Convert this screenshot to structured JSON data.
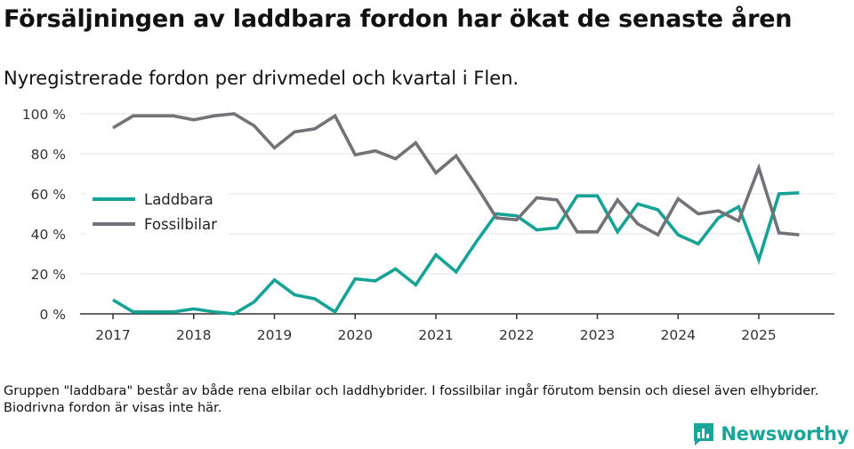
{
  "header": {
    "title": "Försäljningen av laddbara fordon har ökat de senaste åren",
    "subtitle": "Nyregistrerade fordon per drivmedel och kvartal i Flen."
  },
  "footnote": "Gruppen \"laddbara\" består av både rena elbilar och laddhybrider. I fossilbilar ingår förutom bensin och diesel även elhybrider. Biodrivna fordon är visas inte här.",
  "brand": {
    "name": "Newsworthy",
    "icon": "newsworthy-logo-icon"
  },
  "colors": {
    "laddbara": "#16a396",
    "fossilbilar": "#737278",
    "grid": "#e3e3e3",
    "axis": "#333333"
  },
  "chart_data": {
    "type": "line",
    "title": "Försäljningen av laddbara fordon har ökat de senaste åren",
    "xlabel": "",
    "ylabel": "",
    "ylim": [
      0,
      100
    ],
    "xlim": [
      2017,
      2025.9
    ],
    "yticks": [
      0,
      20,
      40,
      60,
      80,
      100
    ],
    "ytick_labels": [
      "0 %",
      "20 %",
      "40 %",
      "60 %",
      "80 %",
      "100 %"
    ],
    "xticks": [
      2017,
      2018,
      2019,
      2020,
      2021,
      2022,
      2023,
      2024,
      2025
    ],
    "xtick_labels": [
      "2017",
      "2018",
      "2019",
      "2020",
      "2021",
      "2022",
      "2023",
      "2024",
      "2025"
    ],
    "grid": true,
    "legend_position": "left-middle",
    "x": [
      2017.0,
      2017.25,
      2017.5,
      2017.75,
      2018.0,
      2018.25,
      2018.5,
      2018.75,
      2019.0,
      2019.25,
      2019.5,
      2019.75,
      2020.0,
      2020.25,
      2020.5,
      2020.75,
      2021.0,
      2021.25,
      2021.5,
      2021.75,
      2022.0,
      2022.25,
      2022.5,
      2022.75,
      2023.0,
      2023.25,
      2023.5,
      2023.75,
      2024.0,
      2024.25,
      2024.5,
      2024.75,
      2025.0,
      2025.25,
      2025.5
    ],
    "series": [
      {
        "name": "Laddbara",
        "color": "#16a396",
        "values": [
          7,
          1,
          1,
          1,
          2.5,
          1,
          0,
          6,
          17,
          9.5,
          7.5,
          1,
          17.5,
          16.5,
          22.5,
          14.5,
          29.5,
          21,
          36,
          50,
          49,
          42,
          43,
          59,
          59,
          41,
          55,
          52,
          39.5,
          35,
          48,
          53.5,
          27,
          60,
          60.5
        ]
      },
      {
        "name": "Fossilbilar",
        "color": "#737278",
        "values": [
          93,
          99,
          99,
          99,
          97,
          99,
          100,
          94,
          83,
          91,
          92.5,
          99,
          79.5,
          81.5,
          77.5,
          85.5,
          70.5,
          79,
          64,
          48,
          47,
          58,
          57,
          41,
          41,
          57,
          45,
          39.5,
          57.5,
          50,
          51.5,
          46.5,
          73,
          40.5,
          39.5
        ]
      }
    ]
  }
}
